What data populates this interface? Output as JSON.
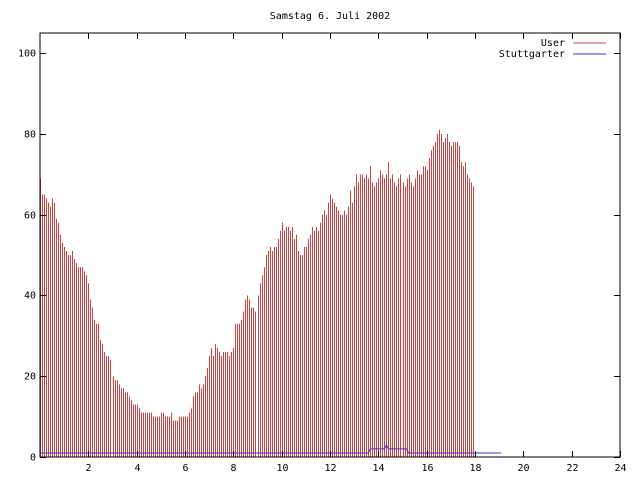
{
  "chart_data": {
    "type": "bar",
    "title": "Samstag 6. Juli 2002",
    "xlabel": "",
    "ylabel": "",
    "xlim": [
      0,
      24
    ],
    "ylim": [
      0,
      105
    ],
    "x_ticks": [
      2,
      4,
      6,
      8,
      10,
      12,
      14,
      16,
      18,
      20,
      22,
      24
    ],
    "y_ticks": [
      0,
      20,
      40,
      60,
      80,
      100
    ],
    "grid": false,
    "legend_position": "top-right",
    "bin_minutes": 5,
    "series": [
      {
        "name": "User",
        "color": "#d04040",
        "style": "impulses",
        "values": [
          69,
          65,
          65,
          64,
          63,
          62,
          64,
          63,
          59,
          58,
          55,
          53,
          52,
          51,
          50,
          50,
          51,
          49,
          48,
          47,
          47,
          47,
          46,
          45,
          43,
          39,
          37,
          34,
          33,
          33,
          29,
          28,
          26,
          25,
          25,
          24,
          20,
          19,
          19,
          18,
          17,
          17,
          16,
          16,
          15,
          14,
          13,
          13,
          13,
          12,
          11,
          11,
          11,
          11,
          11,
          11,
          10,
          10,
          10,
          10,
          11,
          11,
          10,
          10,
          10,
          11,
          9,
          9,
          9,
          10,
          10,
          10,
          10,
          10,
          11,
          12,
          15,
          16,
          16,
          18,
          17,
          18,
          20,
          22,
          25,
          27,
          25,
          28,
          27,
          26,
          25,
          26,
          26,
          26,
          25,
          26,
          27,
          33,
          33,
          33,
          34,
          36,
          39,
          40,
          39,
          37,
          37,
          36,
          40,
          43,
          45,
          47,
          50,
          51,
          52,
          51,
          52,
          52,
          54,
          56,
          58,
          56,
          57,
          57,
          56,
          57,
          54,
          55,
          51,
          50,
          50,
          52,
          52,
          54,
          55,
          57,
          56,
          57,
          56,
          58,
          60,
          61,
          60,
          63,
          65,
          64,
          63,
          62,
          61,
          60,
          60,
          61,
          60,
          62,
          66,
          63,
          67,
          70,
          68,
          70,
          70,
          69,
          70,
          69,
          72,
          68,
          67,
          68,
          69,
          71,
          70,
          69,
          70,
          73,
          69,
          70,
          68,
          67,
          69,
          70,
          68,
          67,
          69,
          70,
          68,
          67,
          69,
          71,
          70,
          70,
          72,
          72,
          71,
          74,
          76,
          77,
          78,
          80,
          81,
          80,
          78,
          79,
          80,
          78,
          77,
          78,
          78,
          78,
          77,
          73,
          72,
          73,
          70,
          69,
          68,
          67
        ]
      },
      {
        "name": "Stuttgarter",
        "color": "#3333cc",
        "style": "line",
        "values": [
          1,
          1,
          1,
          1,
          1,
          1,
          1,
          1,
          1,
          1,
          1,
          1,
          1,
          1,
          1,
          1,
          1,
          1,
          1,
          1,
          1,
          1,
          1,
          1,
          1,
          1,
          1,
          1,
          1,
          1,
          1,
          1,
          1,
          1,
          1,
          1,
          1,
          1,
          1,
          1,
          1,
          1,
          1,
          1,
          1,
          1,
          1,
          1,
          1,
          1,
          1,
          1,
          1,
          1,
          1,
          1,
          1,
          1,
          1,
          1,
          1,
          1,
          1,
          1,
          1,
          1,
          1,
          1,
          1,
          1,
          1,
          1,
          1,
          1,
          1,
          1,
          1,
          1,
          1,
          1,
          1,
          1,
          1,
          1,
          1,
          1,
          1,
          1,
          1,
          1,
          1,
          1,
          1,
          1,
          1,
          1,
          1,
          1,
          1,
          1,
          1,
          1,
          1,
          1,
          1,
          1,
          1,
          1,
          1,
          1,
          1,
          1,
          1,
          1,
          1,
          1,
          1,
          1,
          1,
          1,
          1,
          1,
          1,
          1,
          1,
          1,
          1,
          1,
          1,
          1,
          1,
          1,
          1,
          1,
          1,
          1,
          1,
          1,
          1,
          1,
          1,
          1,
          1,
          1,
          1,
          1,
          1,
          1,
          1,
          1,
          1,
          1,
          1,
          1,
          1,
          1,
          1,
          1,
          1,
          1,
          1,
          1,
          1,
          1,
          2,
          2,
          2,
          2,
          2,
          2,
          2,
          2,
          3,
          2,
          2,
          2,
          2,
          2,
          2,
          2,
          2,
          2,
          2,
          1,
          1,
          1,
          1,
          1,
          1,
          1,
          1,
          1,
          1,
          1,
          1,
          1,
          1,
          1,
          1,
          1,
          1,
          1,
          1,
          1,
          1,
          1,
          1,
          1,
          1,
          1,
          1,
          1,
          1,
          1,
          1,
          1,
          1,
          1,
          1,
          1,
          1,
          1,
          1,
          1,
          1,
          1,
          1,
          1,
          1,
          1
        ]
      }
    ]
  }
}
